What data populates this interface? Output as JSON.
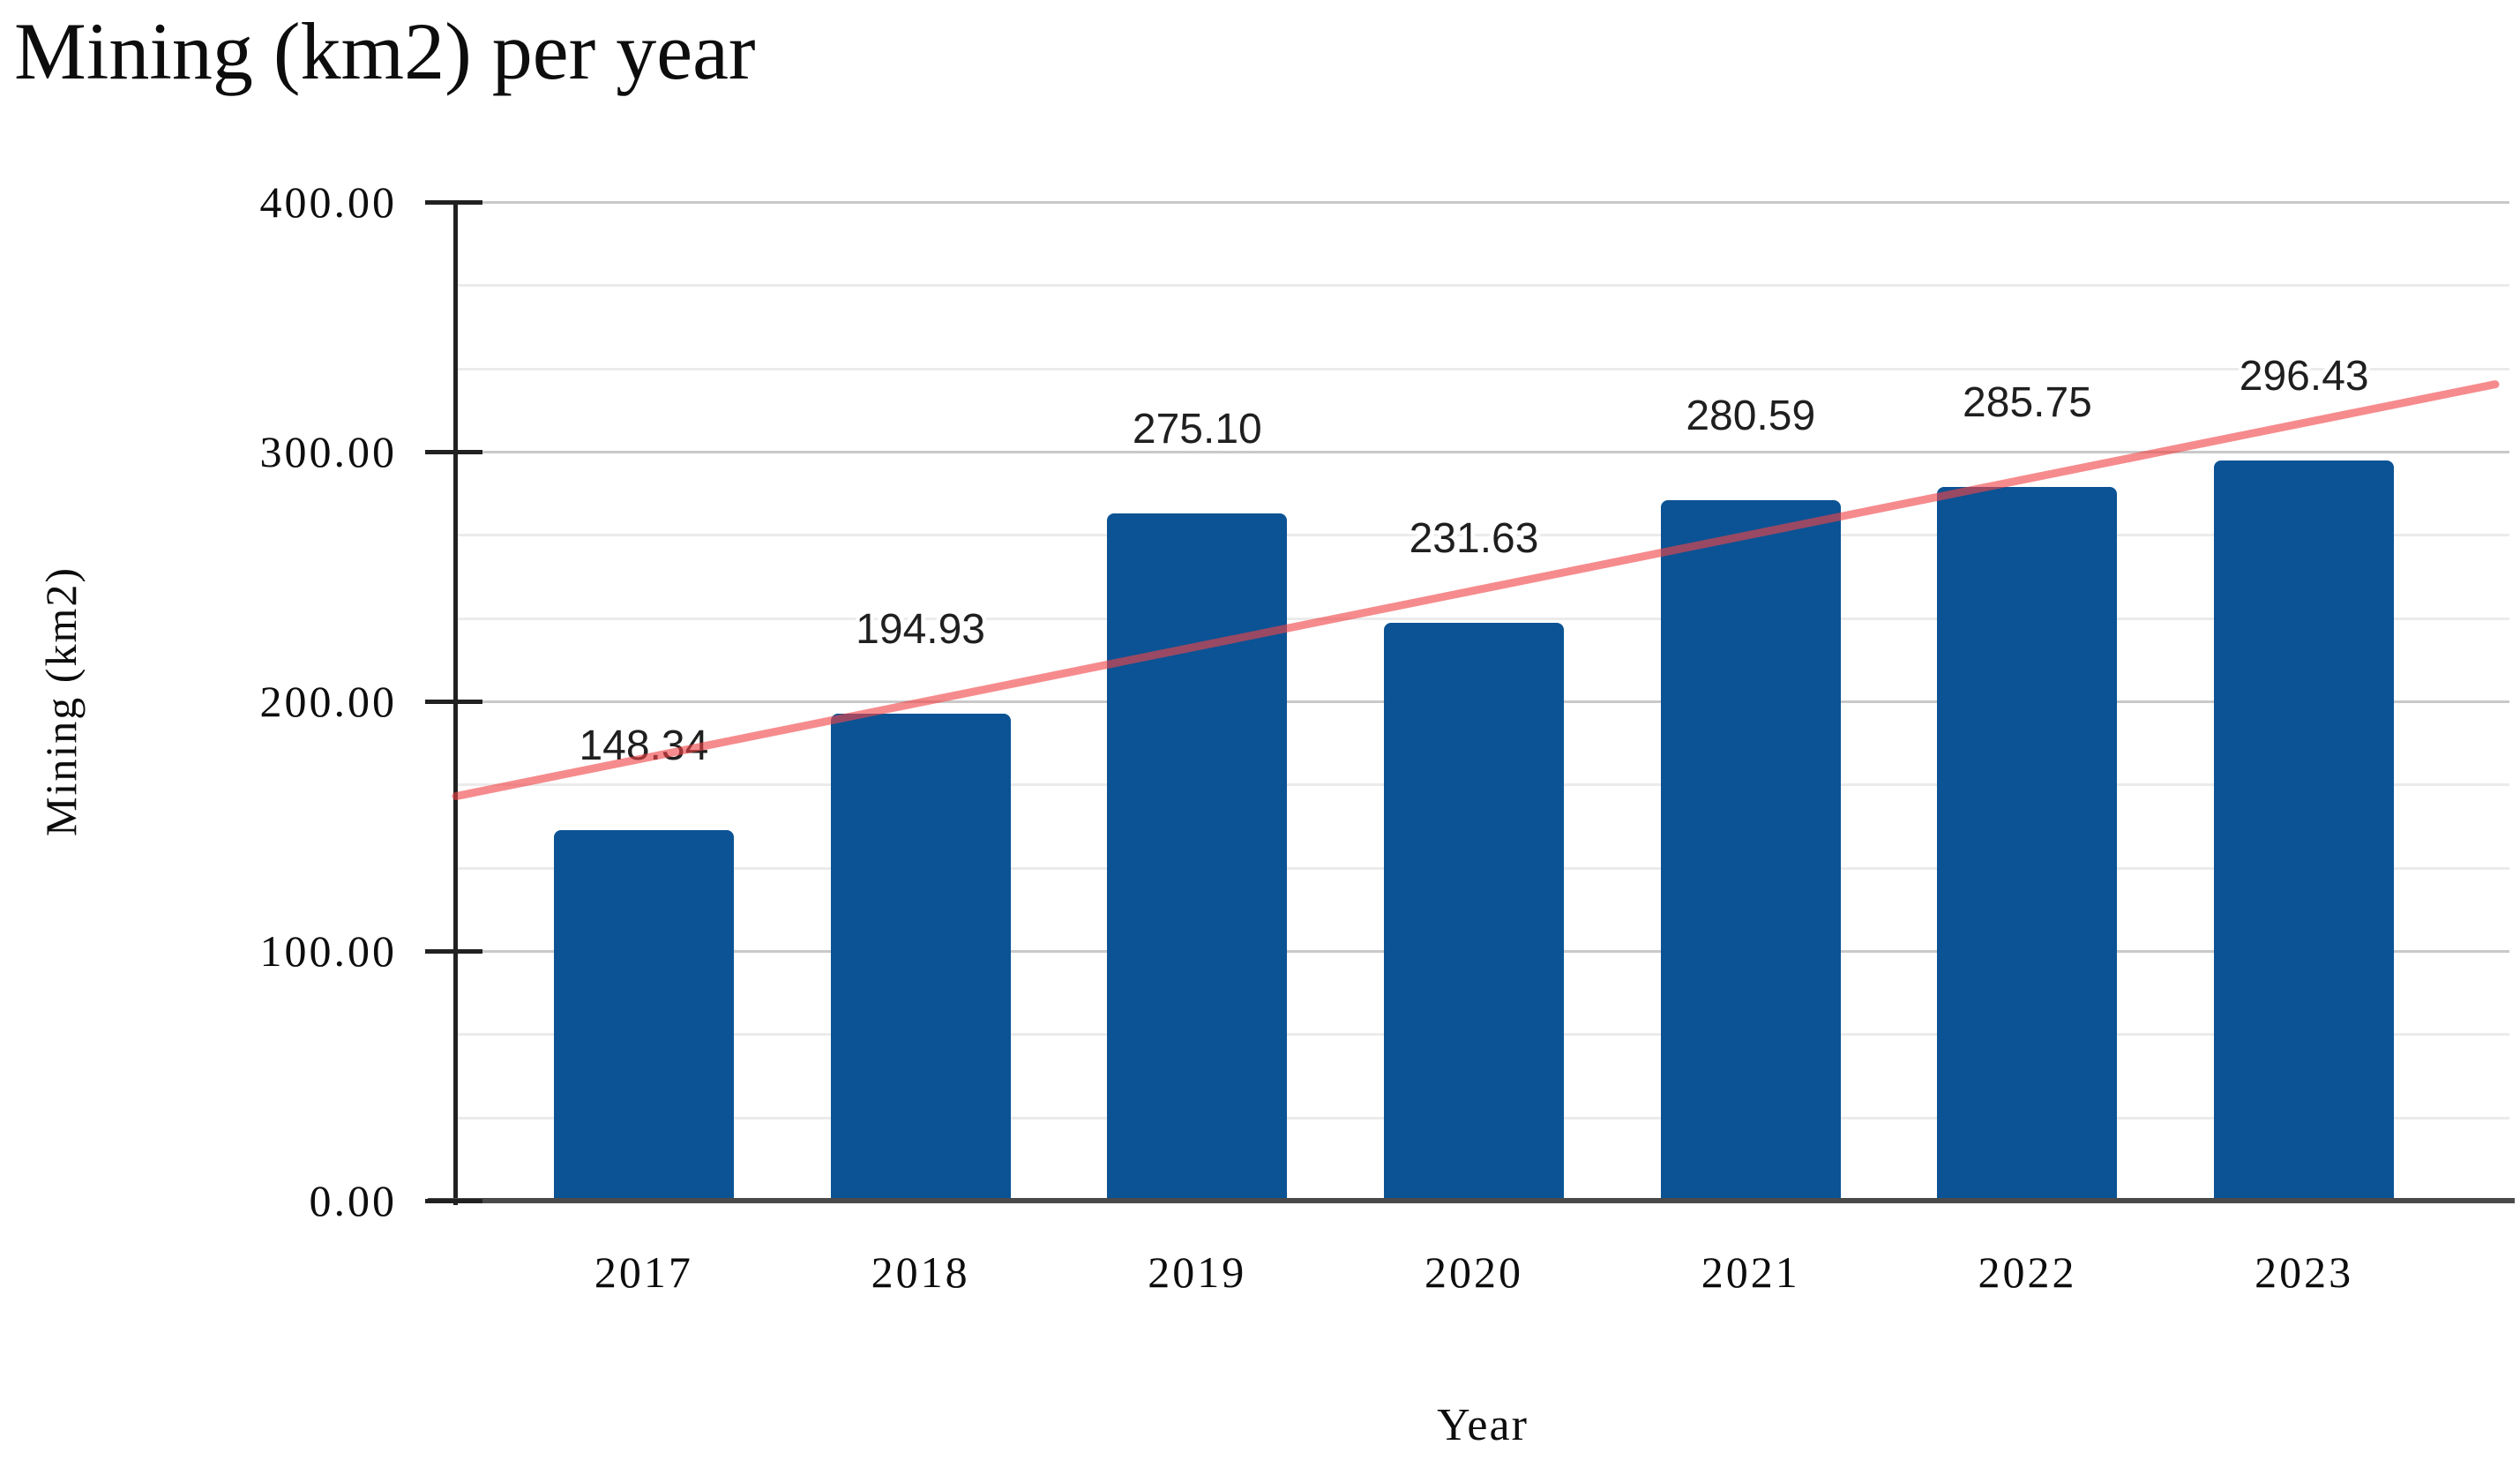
{
  "chart_data": {
    "type": "bar",
    "title": "Mining (km2) per year",
    "xlabel": "Year",
    "ylabel": "Mining (km2)",
    "categories": [
      "2017",
      "2018",
      "2019",
      "2020",
      "2021",
      "2022",
      "2023"
    ],
    "values": [
      148.34,
      194.93,
      275.1,
      231.63,
      280.59,
      285.75,
      296.43
    ],
    "value_labels": [
      "148.34",
      "194.93",
      "275.10",
      "231.63",
      "280.59",
      "285.75",
      "296.43"
    ],
    "ylim": [
      0,
      400
    ],
    "y_tick_values": [
      400,
      300,
      200,
      100,
      0
    ],
    "y_tick_labels": [
      "400.00",
      "300.00",
      "200.00",
      "100.00",
      "0.00"
    ],
    "minor_gridlines_per_major": 2,
    "grid": "on",
    "legend": "none",
    "trendline": {
      "type": "linear",
      "start_value": 162.0,
      "end_value": 327.0
    },
    "colors": {
      "bar": "#0b5394",
      "trendline": "#f04347",
      "trendline_opacity": 0.62,
      "major_gridline": "#c9c9c9",
      "minor_gridline": "#ebebeb",
      "y_axis_line": "#212121",
      "x_axis_line": "#4a4a4a",
      "text": "#0d0d0d"
    }
  }
}
